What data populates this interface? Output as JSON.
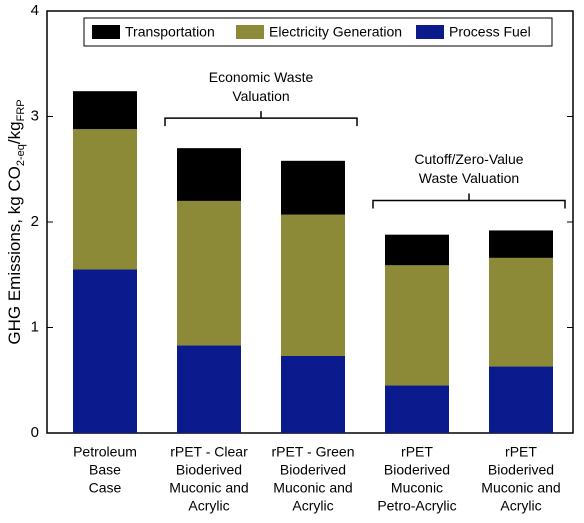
{
  "chart_data": {
    "type": "stacked_bar",
    "y_label": {
      "main": "GHG Emissions, kg CO",
      "sub1": "2-eq",
      "mid": "/kg",
      "sub2": "FRP"
    },
    "categories": [
      [
        "Petroleum",
        "Base",
        "Case"
      ],
      [
        "rPET - Clear",
        "Bioderived",
        "Muconic and",
        "Acrylic"
      ],
      [
        "rPET - Green",
        "Bioderived",
        "Muconic and",
        "Acrylic"
      ],
      [
        "rPET",
        "Bioderived",
        "Muconic",
        "Petro-Acrylic"
      ],
      [
        "rPET",
        "Bioderived",
        "Muconic and",
        "Acrylic"
      ]
    ],
    "series": [
      {
        "name": "Process Fuel",
        "color": "#0b1a8c",
        "values": [
          1.55,
          0.83,
          0.73,
          0.45,
          0.63
        ]
      },
      {
        "name": "Electricity Generation",
        "color": "#8c8a36",
        "values": [
          1.33,
          1.37,
          1.34,
          1.14,
          1.03
        ]
      },
      {
        "name": "Transportation",
        "color": "#000000",
        "values": [
          0.36,
          0.5,
          0.51,
          0.29,
          0.26
        ]
      }
    ],
    "annotations": [
      {
        "lines": [
          "Economic Waste",
          "Valuation"
        ],
        "from": 1,
        "to": 2
      },
      {
        "lines": [
          "Cutoff/Zero-Value",
          "Waste Valuation"
        ],
        "from": 3,
        "to": 4
      }
    ],
    "ylim": [
      0,
      4
    ],
    "yticks": [
      0,
      1,
      2,
      3,
      4
    ]
  }
}
